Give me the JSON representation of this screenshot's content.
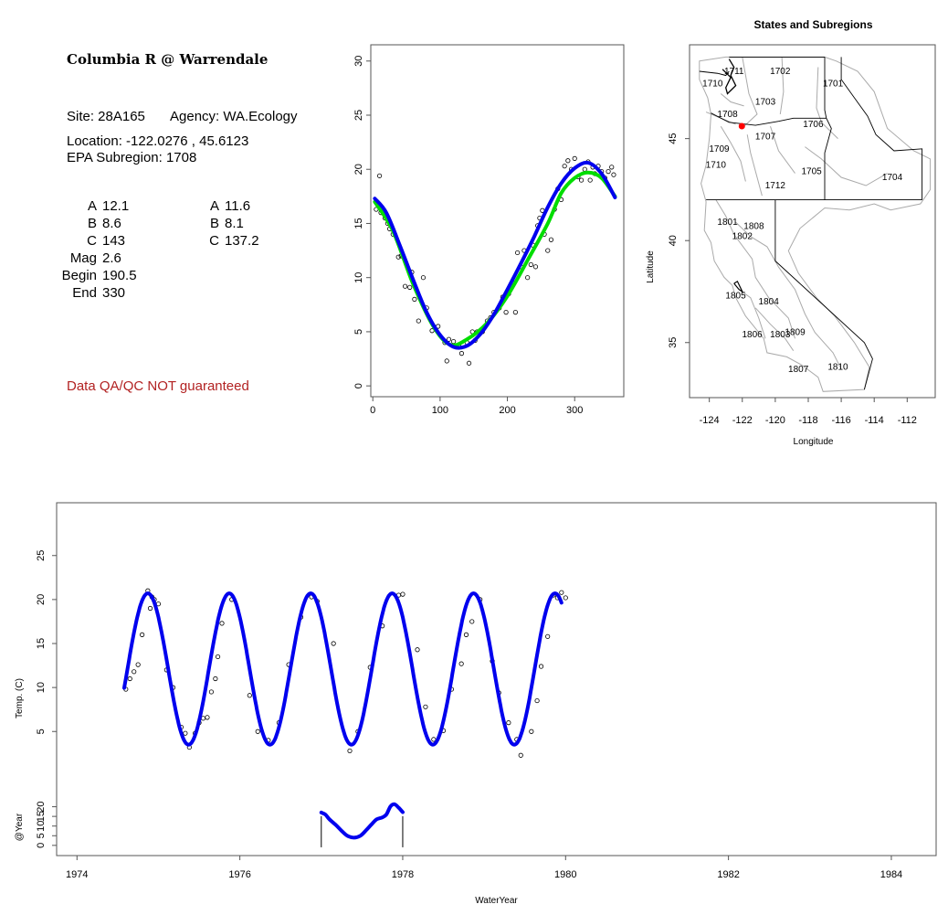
{
  "site": {
    "title": "Columbia R @ Warrendale",
    "site_id_label": "Site: 28A165",
    "agency_label": "Agency: WA.Ecology",
    "location_label": "Location: -122.0276 , 45.6123",
    "subregion_label": "EPA Subregion: 1708",
    "qa_note": "Data QA/QC NOT guaranteed"
  },
  "fit_parameters": {
    "rows": [
      {
        "label": "A",
        "value1": "12.1",
        "label2": "A",
        "value2": "11.6"
      },
      {
        "label": "B",
        "value1": "8.6",
        "label2": "B",
        "value2": "8.1"
      },
      {
        "label": "C",
        "value1": "143",
        "label2": "C",
        "value2": "137.2"
      },
      {
        "label": "Mag",
        "value1": "2.6",
        "label2": "",
        "value2": ""
      },
      {
        "label": "Begin",
        "value1": "190.5",
        "label2": "",
        "value2": ""
      },
      {
        "label": "End",
        "value1": "330",
        "label2": "",
        "value2": ""
      }
    ]
  },
  "colors": {
    "fit_primary": "#0000ee",
    "fit_secondary": "#00dd00",
    "point": "#000000",
    "site_marker": "#ff0000",
    "border": "#555555",
    "boundary_gray": "#aaaaaa",
    "qa_text": "#b22222"
  },
  "chart_data": [
    {
      "type": "scatter",
      "id": "seasonal",
      "title": "",
      "xlabel": "",
      "ylabel": "",
      "xlim": [
        -3,
        373
      ],
      "ylim": [
        -1,
        31.5
      ],
      "xticks": [
        0,
        100,
        200,
        300
      ],
      "yticks": [
        0,
        5,
        10,
        15,
        20,
        25,
        30
      ],
      "points": [
        [
          5,
          16.3
        ],
        [
          10,
          19.4
        ],
        [
          12,
          16
        ],
        [
          18,
          15.5
        ],
        [
          22,
          15
        ],
        [
          25,
          14.5
        ],
        [
          30,
          14
        ],
        [
          38,
          11.9
        ],
        [
          42,
          12
        ],
        [
          48,
          9.2
        ],
        [
          55,
          9.1
        ],
        [
          58,
          10.5
        ],
        [
          62,
          8
        ],
        [
          68,
          6
        ],
        [
          75,
          10
        ],
        [
          80,
          7.2
        ],
        [
          88,
          5.1
        ],
        [
          97,
          5.5
        ],
        [
          107,
          4
        ],
        [
          110,
          2.3
        ],
        [
          113,
          4.3
        ],
        [
          120,
          4.1
        ],
        [
          128,
          3.7
        ],
        [
          132,
          3
        ],
        [
          140,
          4
        ],
        [
          143,
          2.1
        ],
        [
          148,
          5
        ],
        [
          152,
          4.2
        ],
        [
          155,
          5
        ],
        [
          163,
          5
        ],
        [
          170,
          6
        ],
        [
          175,
          6.3
        ],
        [
          180,
          6.8
        ],
        [
          188,
          7.2
        ],
        [
          193,
          8.2
        ],
        [
          198,
          6.8
        ],
        [
          202,
          8.5
        ],
        [
          210,
          9.5
        ],
        [
          212,
          6.8
        ],
        [
          215,
          12.3
        ],
        [
          220,
          11
        ],
        [
          225,
          12.5
        ],
        [
          230,
          10
        ],
        [
          235,
          11.2
        ],
        [
          238,
          13
        ],
        [
          242,
          11
        ],
        [
          245,
          14.8
        ],
        [
          248,
          15.5
        ],
        [
          252,
          16.2
        ],
        [
          255,
          14
        ],
        [
          260,
          12.5
        ],
        [
          265,
          13.5
        ],
        [
          270,
          16.3
        ],
        [
          275,
          18.2
        ],
        [
          280,
          17.2
        ],
        [
          285,
          20.3
        ],
        [
          290,
          20.8
        ],
        [
          295,
          20
        ],
        [
          300,
          21
        ],
        [
          305,
          19.3
        ],
        [
          310,
          19
        ],
        [
          315,
          20
        ],
        [
          320,
          20.7
        ],
        [
          323,
          19
        ],
        [
          327,
          20.2
        ],
        [
          330,
          19.6
        ],
        [
          335,
          20.3
        ],
        [
          340,
          19.8
        ],
        [
          345,
          19.2
        ],
        [
          350,
          19.8
        ],
        [
          355,
          20.2
        ],
        [
          358,
          19.5
        ]
      ],
      "series": [
        {
          "name": "",
          "model": "sine",
          "A": 11.6,
          "B": 8.1,
          "C": 137.2,
          "curve": [
            [
              3,
              17
            ],
            [
              30,
              14.3
            ],
            [
              60,
              9.4
            ],
            [
              90,
              5.5
            ],
            [
              115,
              3.8
            ],
            [
              140,
              4.3
            ],
            [
              170,
              5.8
            ],
            [
              200,
              8.3
            ],
            [
              230,
              11.6
            ],
            [
              260,
              15
            ],
            [
              280,
              17.8
            ],
            [
              300,
              19.2
            ],
            [
              320,
              19.7
            ],
            [
              340,
              19.2
            ],
            [
              360,
              17.5
            ]
          ]
        },
        {
          "name": "",
          "model": "sine",
          "A": 12.1,
          "B": 8.6,
          "C": 143,
          "curve": [
            [
              3,
              17.3
            ],
            [
              20,
              16
            ],
            [
              40,
              13
            ],
            [
              60,
              9.8
            ],
            [
              80,
              6.8
            ],
            [
              100,
              4.7
            ],
            [
              120,
              3.6
            ],
            [
              140,
              3.7
            ],
            [
              160,
              4.8
            ],
            [
              180,
              6.6
            ],
            [
              200,
              8.9
            ],
            [
              220,
              11.3
            ],
            [
              240,
              13.8
            ],
            [
              260,
              16.5
            ],
            [
              280,
              18.7
            ],
            [
              300,
              20.1
            ],
            [
              320,
              20.6
            ],
            [
              340,
              19.6
            ],
            [
              360,
              17.4
            ]
          ]
        }
      ]
    },
    {
      "type": "map",
      "id": "subregions",
      "title": "States and Subregions",
      "xlabel": "Longitude",
      "ylabel": "Latitude",
      "xlim": [
        -125.2,
        -110.3
      ],
      "ylim": [
        32.3,
        49.6
      ],
      "xticks": [
        -124,
        -122,
        -120,
        -118,
        -116,
        -114,
        -112
      ],
      "yticks": [
        35,
        40,
        45
      ],
      "region_labels": [
        {
          "text": "1711",
          "lon": -122.5,
          "lat": 48.3
        },
        {
          "text": "1702",
          "lon": -119.7,
          "lat": 48.3
        },
        {
          "text": "1710",
          "lon": -123.8,
          "lat": 47.7
        },
        {
          "text": "1701",
          "lon": -116.5,
          "lat": 47.7
        },
        {
          "text": "1703",
          "lon": -120.6,
          "lat": 46.8
        },
        {
          "text": "1708",
          "lon": -122.9,
          "lat": 46.2
        },
        {
          "text": "1706",
          "lon": -117.7,
          "lat": 45.7
        },
        {
          "text": "1707",
          "lon": -120.6,
          "lat": 45.1
        },
        {
          "text": "1709",
          "lon": -123.4,
          "lat": 44.5
        },
        {
          "text": "1710",
          "lon": -123.6,
          "lat": 43.7
        },
        {
          "text": "1705",
          "lon": -117.8,
          "lat": 43.4
        },
        {
          "text": "1704",
          "lon": -112.9,
          "lat": 43.1
        },
        {
          "text": "1712",
          "lon": -120,
          "lat": 42.7
        },
        {
          "text": "1801",
          "lon": -122.9,
          "lat": 40.9
        },
        {
          "text": "1808",
          "lon": -121.3,
          "lat": 40.7
        },
        {
          "text": "1802",
          "lon": -122,
          "lat": 40.2
        },
        {
          "text": "1805",
          "lon": -122.4,
          "lat": 37.3
        },
        {
          "text": "1804",
          "lon": -120.4,
          "lat": 37
        },
        {
          "text": "1809",
          "lon": -118.8,
          "lat": 35.5
        },
        {
          "text": "1806",
          "lon": -121.4,
          "lat": 35.4
        },
        {
          "text": "1803",
          "lon": -119.7,
          "lat": 35.4
        },
        {
          "text": "1807",
          "lon": -118.6,
          "lat": 33.7
        },
        {
          "text": "1810",
          "lon": -116.2,
          "lat": 33.8
        }
      ],
      "site": {
        "lon": -122.0276,
        "lat": 45.6123
      }
    },
    {
      "type": "line",
      "id": "timeseries",
      "title": "",
      "xlabel": "WaterYear",
      "ylabel": "Temp. (C)",
      "xlim": [
        1973.75,
        1984.55
      ],
      "ylim": [
        -1,
        31
      ],
      "xticks": [
        1974,
        1976,
        1978,
        1980,
        1982,
        1984
      ],
      "yticks": [
        5,
        10,
        15,
        20,
        25
      ],
      "fit": {
        "start": 1974.58,
        "end": 1979.95,
        "mean": 12.1,
        "amplitude": 8.6,
        "peak_fraction": 0.87
      },
      "points": [
        [
          1974.6,
          9.8
        ],
        [
          1974.65,
          11
        ],
        [
          1974.7,
          11.8
        ],
        [
          1974.75,
          12.6
        ],
        [
          1974.8,
          16
        ],
        [
          1974.87,
          21
        ],
        [
          1974.9,
          19
        ],
        [
          1974.92,
          20.3
        ],
        [
          1974.95,
          20
        ],
        [
          1975.0,
          19.5
        ],
        [
          1975.1,
          12
        ],
        [
          1975.18,
          10
        ],
        [
          1975.28,
          5.5
        ],
        [
          1975.33,
          4.8
        ],
        [
          1975.38,
          3.2
        ],
        [
          1975.45,
          4.8
        ],
        [
          1975.5,
          6
        ],
        [
          1975.55,
          6.5
        ],
        [
          1975.6,
          6.6
        ],
        [
          1975.65,
          9.5
        ],
        [
          1975.7,
          11
        ],
        [
          1975.73,
          13.5
        ],
        [
          1975.78,
          17.3
        ],
        [
          1975.9,
          20
        ],
        [
          1976.12,
          9.1
        ],
        [
          1976.22,
          5
        ],
        [
          1976.35,
          4
        ],
        [
          1976.48,
          6
        ],
        [
          1976.6,
          12.6
        ],
        [
          1976.75,
          18
        ],
        [
          1976.88,
          20.3
        ],
        [
          1976.95,
          19.8
        ],
        [
          1977.15,
          15
        ],
        [
          1977.35,
          2.8
        ],
        [
          1977.45,
          5
        ],
        [
          1977.6,
          12.3
        ],
        [
          1977.75,
          17
        ],
        [
          1977.95,
          20.5
        ],
        [
          1978.0,
          20.6
        ],
        [
          1978.18,
          14.3
        ],
        [
          1978.28,
          7.8
        ],
        [
          1978.38,
          4.1
        ],
        [
          1978.5,
          5.1
        ],
        [
          1978.6,
          9.8
        ],
        [
          1978.72,
          12.7
        ],
        [
          1978.78,
          16
        ],
        [
          1978.85,
          17.5
        ],
        [
          1978.95,
          20
        ],
        [
          1979.1,
          13
        ],
        [
          1979.18,
          9.4
        ],
        [
          1979.3,
          6
        ],
        [
          1979.4,
          4.1
        ],
        [
          1979.45,
          2.3
        ],
        [
          1979.58,
          5
        ],
        [
          1979.65,
          8.5
        ],
        [
          1979.7,
          12.4
        ],
        [
          1979.78,
          15.8
        ],
        [
          1979.85,
          20.5
        ],
        [
          1979.9,
          20.2
        ],
        [
          1979.95,
          20.8
        ],
        [
          1980.0,
          20.2
        ]
      ]
    },
    {
      "type": "line",
      "id": "year_panel",
      "title": "",
      "xlabel": "",
      "ylabel": "@Year",
      "xlim": [
        1973.75,
        1984.55
      ],
      "ylim": [
        -1.5,
        25
      ],
      "yticks": [
        0,
        5,
        10,
        15,
        20
      ],
      "year_bounds": [
        1977.0,
        1978.0
      ],
      "curve": [
        [
          1977.0,
          17
        ],
        [
          1977.05,
          16
        ],
        [
          1977.1,
          13.5
        ],
        [
          1977.18,
          10.5
        ],
        [
          1977.25,
          7.5
        ],
        [
          1977.32,
          5
        ],
        [
          1977.4,
          4
        ],
        [
          1977.48,
          5
        ],
        [
          1977.55,
          7.8
        ],
        [
          1977.62,
          11
        ],
        [
          1977.68,
          13.5
        ],
        [
          1977.75,
          14.5
        ],
        [
          1977.8,
          16
        ],
        [
          1977.85,
          20.2
        ],
        [
          1977.9,
          21.3
        ],
        [
          1977.95,
          19.5
        ],
        [
          1978.0,
          17.2
        ]
      ]
    }
  ]
}
